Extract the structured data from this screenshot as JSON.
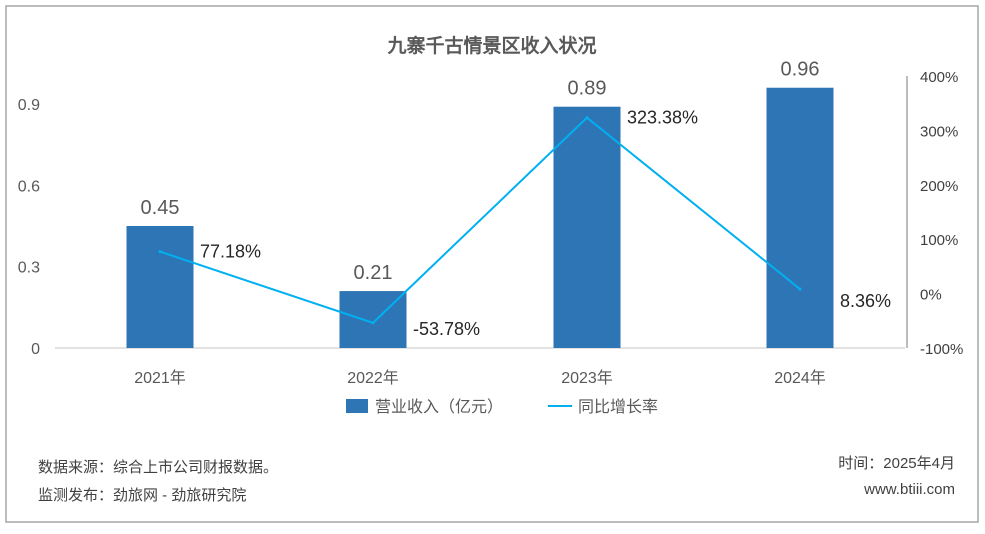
{
  "chart_data": {
    "type": "bar+line",
    "title": "九寨千古情景区收入状况",
    "categories": [
      "2021年",
      "2022年",
      "2023年",
      "2024年"
    ],
    "series": [
      {
        "name": "营业收入（亿元）",
        "type": "bar",
        "axis": "left",
        "values": [
          0.45,
          0.21,
          0.89,
          0.96
        ],
        "labels": [
          "0.45",
          "0.21",
          "0.89",
          "0.96"
        ],
        "color": "#2e75b6"
      },
      {
        "name": "同比增长率",
        "type": "line",
        "axis": "right",
        "values": [
          77.18,
          -53.78,
          323.38,
          8.36
        ],
        "labels": [
          "77.18%",
          "-53.78%",
          "323.38%",
          "8.36%"
        ],
        "color": "#00b0f0"
      }
    ],
    "left_axis": {
      "ylim": [
        0,
        0.9
      ],
      "ticks": [
        "0",
        "0.3",
        "0.6",
        "0.9"
      ],
      "tick_values": [
        0,
        0.3,
        0.6,
        0.9
      ]
    },
    "right_axis": {
      "ylim": [
        -100,
        400
      ],
      "ticks": [
        "-100%",
        "0%",
        "100%",
        "200%",
        "300%",
        "400%"
      ],
      "tick_values": [
        -100,
        0,
        100,
        200,
        300,
        400
      ]
    },
    "legend_position": "bottom",
    "grid": false
  },
  "footer": {
    "source": "数据来源：综合上市公司财报数据。",
    "publisher": "监测发布：劲旅网 - 劲旅研究院",
    "time": "时间：2025年4月",
    "website": "www.btiii.com"
  }
}
